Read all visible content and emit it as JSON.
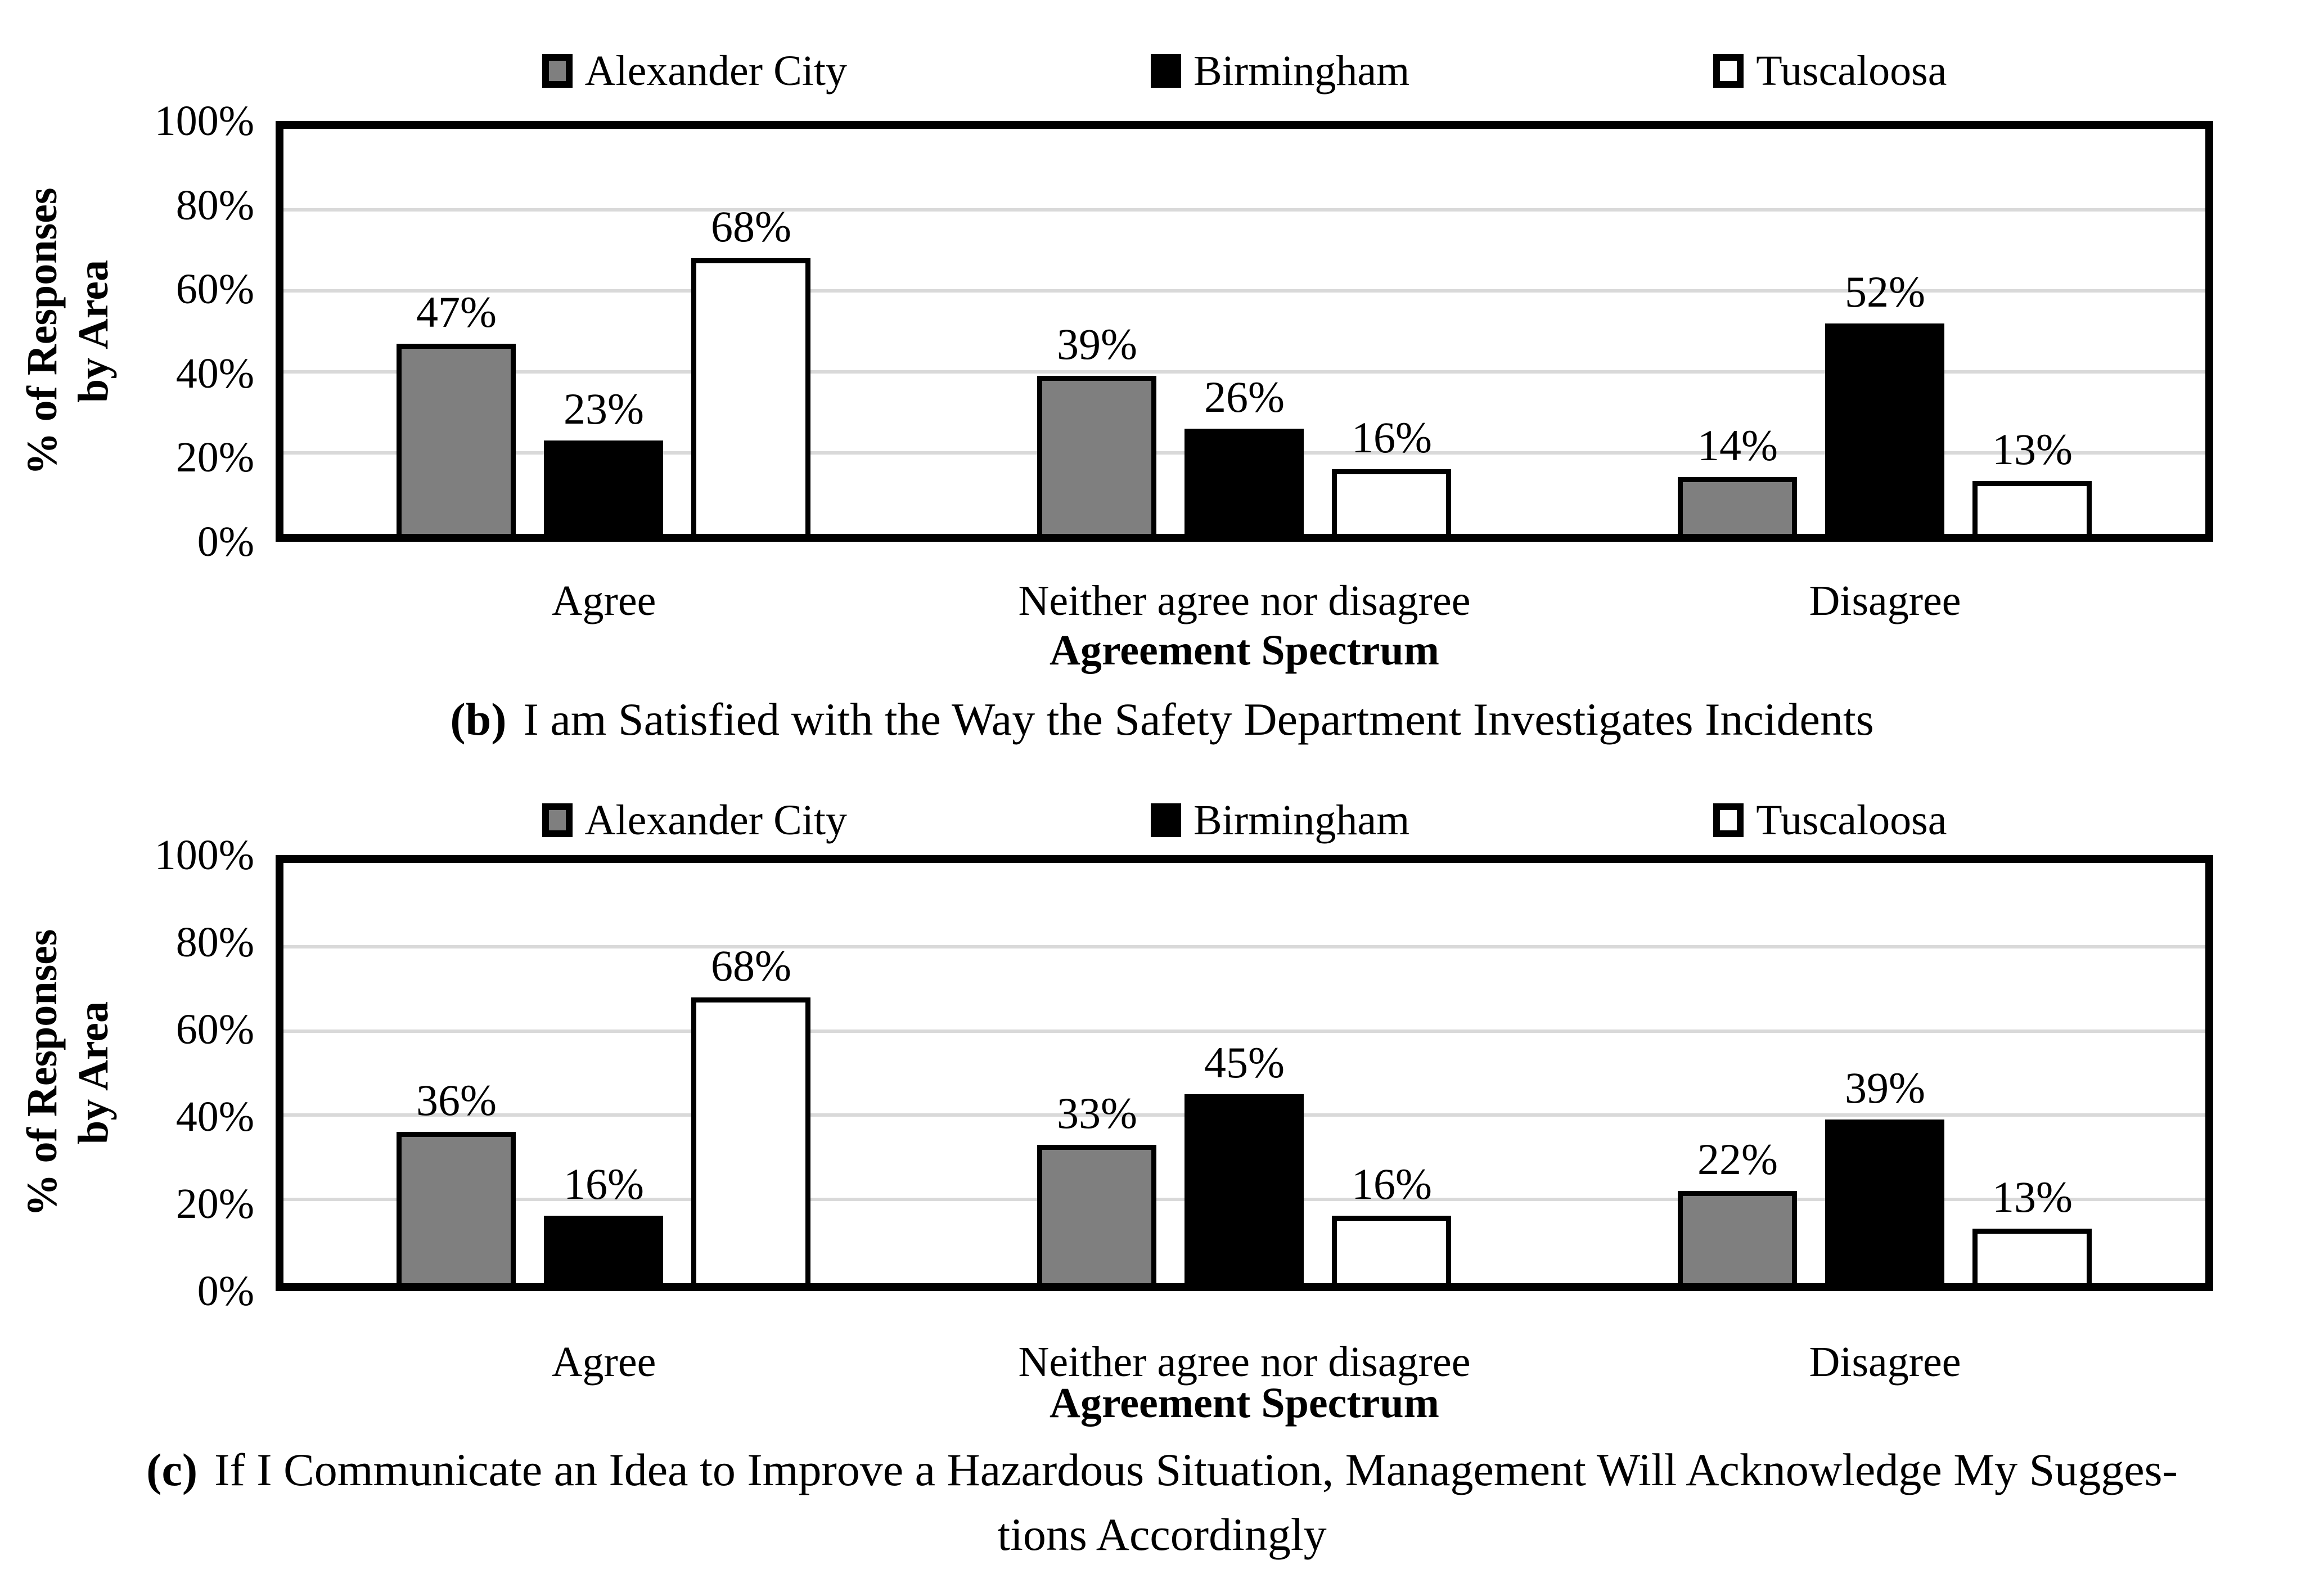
{
  "figure": {
    "ylabel_lines": [
      "% of Responses",
      "by Area"
    ],
    "xlabel": "Agreement Spectrum",
    "ytick_labels": [
      "100%",
      "80%",
      "60%",
      "40%",
      "20%",
      "0%"
    ],
    "categories": [
      "Agree",
      "Neither agree nor disagree",
      "Disagree"
    ],
    "legend_labels": [
      "Alexander City",
      "Birmingham",
      "Tuscaloosa"
    ],
    "colors": {
      "alexander_city": "#7f7f7f",
      "birmingham": "#000000",
      "tuscaloosa": "#ffffff",
      "bar_border": "#000000",
      "grid": "#d9d9d9",
      "axis": "#000000",
      "background": "#ffffff"
    }
  },
  "chart_data": [
    {
      "type": "bar",
      "panel": "b",
      "caption_prefix": "(b)",
      "caption_lines": [
        "I am Satisfied with the Way the Safety Department Investigates Incidents"
      ],
      "title": "(b) I am Satisfied with the Way the Safety Department Investigates Incidents",
      "categories": [
        "Agree",
        "Neither agree nor disagree",
        "Disagree"
      ],
      "xlabel": "Agreement Spectrum",
      "ylabel": "% of Responses by Area",
      "ylim": [
        0,
        100
      ],
      "ytick_percents": [
        0,
        20,
        40,
        60,
        80,
        100
      ],
      "grid": true,
      "legend_position": "top",
      "series": [
        {
          "name": "Alexander City",
          "color": "#7f7f7f",
          "values": [
            47,
            39,
            14
          ],
          "labels": [
            "47%",
            "39%",
            "14%"
          ]
        },
        {
          "name": "Birmingham",
          "color": "#000000",
          "values": [
            23,
            26,
            52
          ],
          "labels": [
            "23%",
            "26%",
            "52%"
          ]
        },
        {
          "name": "Tuscaloosa",
          "color": "#ffffff",
          "values": [
            68,
            16,
            13
          ],
          "labels": [
            "68%",
            "16%",
            "13%"
          ]
        }
      ]
    },
    {
      "type": "bar",
      "panel": "c",
      "caption_prefix": "(c)",
      "caption_lines": [
        "If I Communicate an Idea to Improve a Hazardous Situation, Management Will Acknowledge My Sugges-",
        "tions Accordingly"
      ],
      "title": "(c) If I Communicate an Idea to Improve a Hazardous Situation, Management Will Acknowledge My Suggestions Accordingly",
      "categories": [
        "Agree",
        "Neither agree nor disagree",
        "Disagree"
      ],
      "xlabel": "Agreement Spectrum",
      "ylabel": "% of Responses by Area",
      "ylim": [
        0,
        100
      ],
      "ytick_percents": [
        0,
        20,
        40,
        60,
        80,
        100
      ],
      "grid": true,
      "legend_position": "top",
      "series": [
        {
          "name": "Alexander City",
          "color": "#7f7f7f",
          "values": [
            36,
            33,
            22
          ],
          "labels": [
            "36%",
            "33%",
            "22%"
          ]
        },
        {
          "name": "Birmingham",
          "color": "#000000",
          "values": [
            16,
            45,
            39
          ],
          "labels": [
            "16%",
            "45%",
            "39%"
          ]
        },
        {
          "name": "Tuscaloosa",
          "color": "#ffffff",
          "values": [
            68,
            16,
            13
          ],
          "labels": [
            "68%",
            "16%",
            "13%"
          ]
        }
      ]
    }
  ]
}
